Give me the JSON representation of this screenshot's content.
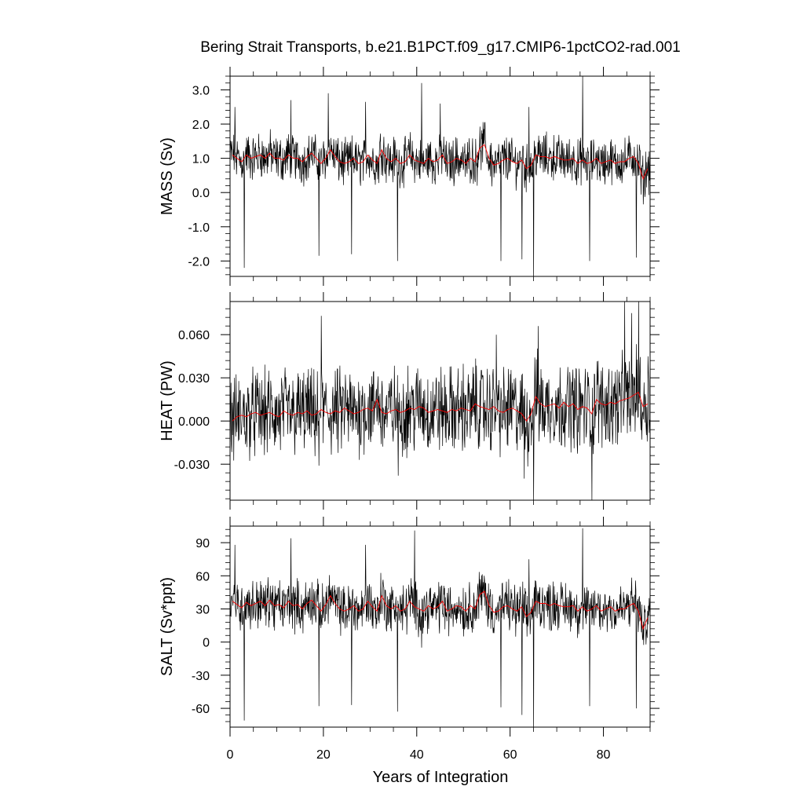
{
  "chart_data": {
    "type": "line",
    "title": "Bering Strait Transports, b.e21.B1PCT.f09_g17.CMIP6-1pctCO2-rad.001",
    "xlabel": "Years of Integration",
    "xlim": [
      0,
      90
    ],
    "xticks": [
      0,
      20,
      40,
      60,
      80
    ],
    "xtick_labels": [
      "0",
      "20",
      "40",
      "60",
      "80"
    ],
    "colors": {
      "monthly": "#000000",
      "annual": "#ff0000"
    },
    "panels": [
      {
        "ylabel": "MASS (Sv)",
        "ylim": [
          -2.45,
          3.4
        ],
        "yticks": [
          -2.0,
          -1.0,
          0.0,
          1.0,
          2.0,
          3.0
        ],
        "ytick_labels": [
          "-2.0",
          "-1.0",
          "0.0",
          "1.0",
          "2.0",
          "3.0"
        ],
        "annual_x": [
          0.5,
          1.5,
          2.5,
          3.5,
          4.5,
          5.5,
          6.5,
          7.5,
          8.5,
          9.5,
          10.5,
          11.5,
          12.5,
          13.5,
          14.5,
          15.5,
          16.5,
          17.5,
          18.5,
          19.5,
          20.5,
          21.5,
          22.5,
          23.5,
          24.5,
          25.5,
          26.5,
          27.5,
          28.5,
          29.5,
          30.5,
          31.5,
          32.5,
          33.5,
          34.5,
          35.5,
          36.5,
          37.5,
          38.5,
          39.5,
          40.5,
          41.5,
          42.5,
          43.5,
          44.5,
          45.5,
          46.5,
          47.5,
          48.5,
          49.5,
          50.5,
          51.5,
          52.5,
          53.5,
          54.5,
          55.5,
          56.5,
          57.5,
          58.5,
          59.5,
          60.5,
          61.5,
          62.5,
          63.5,
          64.5,
          65.5,
          66.5,
          67.5,
          68.5,
          69.5,
          70.5,
          71.5,
          72.5,
          73.5,
          74.5,
          75.5,
          76.5,
          77.5,
          78.5,
          79.5,
          80.5,
          81.5,
          82.5,
          83.5,
          84.5,
          85.5,
          86.5,
          87.5,
          88.5,
          89.5
        ],
        "annual_values": [
          1.1,
          1.0,
          0.9,
          1.1,
          1.0,
          1.05,
          1.1,
          1.0,
          1.15,
          1.0,
          1.0,
          0.95,
          1.1,
          1.0,
          1.0,
          0.9,
          1.05,
          1.15,
          1.0,
          0.85,
          1.0,
          1.25,
          1.05,
          0.9,
          0.85,
          0.9,
          1.0,
          0.85,
          0.9,
          1.1,
          0.95,
          0.85,
          1.25,
          1.0,
          0.9,
          1.0,
          0.85,
          0.9,
          1.1,
          0.95,
          0.9,
          0.85,
          1.0,
          0.9,
          0.95,
          1.1,
          0.85,
          0.9,
          1.0,
          0.95,
          0.85,
          1.0,
          0.9,
          1.3,
          1.4,
          1.0,
          0.8,
          0.85,
          0.95,
          1.0,
          0.9,
          0.85,
          0.95,
          0.7,
          0.8,
          1.1,
          1.05,
          1.05,
          1.0,
          1.05,
          1.0,
          0.95,
          0.95,
          1.0,
          0.85,
          0.95,
          0.85,
          0.9,
          1.0,
          0.85,
          0.9,
          0.95,
          0.85,
          0.9,
          0.9,
          1.0,
          1.05,
          0.85,
          0.4,
          0.7
        ],
        "monthly_mean": 0.95,
        "monthly_spread": 0.45,
        "monthly_spikes": [
          [
            3.0,
            -2.2
          ],
          [
            19.0,
            -1.85
          ],
          [
            21.0,
            2.9
          ],
          [
            26.0,
            -1.8
          ],
          [
            29.0,
            2.65
          ],
          [
            35.8,
            -2.0
          ],
          [
            41.0,
            3.2
          ],
          [
            58.0,
            -2.0
          ],
          [
            62.5,
            -1.95
          ],
          [
            64.0,
            2.5
          ],
          [
            65.0,
            -2.45
          ],
          [
            75.5,
            3.4
          ],
          [
            77.0,
            -2.0
          ],
          [
            87.0,
            -1.9
          ],
          [
            1.0,
            2.5
          ],
          [
            13.0,
            2.7
          ],
          [
            45.0,
            2.6
          ]
        ]
      },
      {
        "ylabel": "HEAT (PW)",
        "ylim": [
          -0.055,
          0.083
        ],
        "yticks": [
          -0.03,
          0.0,
          0.03,
          0.06
        ],
        "ytick_labels": [
          "-0.030",
          "0.000",
          "0.030",
          "0.060"
        ],
        "annual_x": [
          0.5,
          1.5,
          2.5,
          3.5,
          4.5,
          5.5,
          6.5,
          7.5,
          8.5,
          9.5,
          10.5,
          11.5,
          12.5,
          13.5,
          14.5,
          15.5,
          16.5,
          17.5,
          18.5,
          19.5,
          20.5,
          21.5,
          22.5,
          23.5,
          24.5,
          25.5,
          26.5,
          27.5,
          28.5,
          29.5,
          30.5,
          31.5,
          32.5,
          33.5,
          34.5,
          35.5,
          36.5,
          37.5,
          38.5,
          39.5,
          40.5,
          41.5,
          42.5,
          43.5,
          44.5,
          45.5,
          46.5,
          47.5,
          48.5,
          49.5,
          50.5,
          51.5,
          52.5,
          53.5,
          54.5,
          55.5,
          56.5,
          57.5,
          58.5,
          59.5,
          60.5,
          61.5,
          62.5,
          63.5,
          64.5,
          65.5,
          66.5,
          67.5,
          68.5,
          69.5,
          70.5,
          71.5,
          72.5,
          73.5,
          74.5,
          75.5,
          76.5,
          77.5,
          78.5,
          79.5,
          80.5,
          81.5,
          82.5,
          83.5,
          84.5,
          85.5,
          86.5,
          87.5,
          88.5,
          89.5
        ],
        "annual_values": [
          0.0,
          0.003,
          0.004,
          0.003,
          0.005,
          0.006,
          0.004,
          0.005,
          0.006,
          0.004,
          0.003,
          0.007,
          0.005,
          0.004,
          0.006,
          0.005,
          0.007,
          0.004,
          0.005,
          0.008,
          0.006,
          0.005,
          0.007,
          0.006,
          0.009,
          0.007,
          0.005,
          0.006,
          0.008,
          0.009,
          0.007,
          0.015,
          0.006,
          0.005,
          0.007,
          0.008,
          0.006,
          0.007,
          0.009,
          0.008,
          0.01,
          0.009,
          0.006,
          0.007,
          0.008,
          0.007,
          0.006,
          0.008,
          0.007,
          0.009,
          0.008,
          0.007,
          0.012,
          0.01,
          0.009,
          0.008,
          0.01,
          0.007,
          0.006,
          0.008,
          0.009,
          0.007,
          0.005,
          0.0,
          0.005,
          0.017,
          0.012,
          0.01,
          0.011,
          0.012,
          0.009,
          0.013,
          0.01,
          0.012,
          0.008,
          0.01,
          0.009,
          0.005,
          0.015,
          0.012,
          0.011,
          0.013,
          0.012,
          0.014,
          0.015,
          0.016,
          0.018,
          0.02,
          0.01,
          0.012
        ],
        "monthly_mean": 0.008,
        "monthly_spread": 0.02,
        "monthly_spikes": [
          [
            19.5,
            0.073
          ],
          [
            19.0,
            -0.031
          ],
          [
            36.0,
            -0.038
          ],
          [
            63.0,
            -0.04
          ],
          [
            65.0,
            -0.055
          ],
          [
            66.0,
            0.066
          ],
          [
            77.5,
            -0.055
          ],
          [
            84.5,
            0.083
          ],
          [
            86.0,
            0.075
          ],
          [
            87.5,
            0.083
          ],
          [
            89.5,
            0.045
          ],
          [
            57.0,
            0.06
          ]
        ]
      },
      {
        "ylabel": "SALT (Sv*ppt)",
        "ylim": [
          -77,
          105
        ],
        "yticks": [
          -60,
          -30,
          0,
          30,
          60,
          90
        ],
        "ytick_labels": [
          "-60",
          "-30",
          "0",
          "30",
          "60",
          "90"
        ],
        "annual_x": [
          0.5,
          1.5,
          2.5,
          3.5,
          4.5,
          5.5,
          6.5,
          7.5,
          8.5,
          9.5,
          10.5,
          11.5,
          12.5,
          13.5,
          14.5,
          15.5,
          16.5,
          17.5,
          18.5,
          19.5,
          20.5,
          21.5,
          22.5,
          23.5,
          24.5,
          25.5,
          26.5,
          27.5,
          28.5,
          29.5,
          30.5,
          31.5,
          32.5,
          33.5,
          34.5,
          35.5,
          36.5,
          37.5,
          38.5,
          39.5,
          40.5,
          41.5,
          42.5,
          43.5,
          44.5,
          45.5,
          46.5,
          47.5,
          48.5,
          49.5,
          50.5,
          51.5,
          52.5,
          53.5,
          54.5,
          55.5,
          56.5,
          57.5,
          58.5,
          59.5,
          60.5,
          61.5,
          62.5,
          63.5,
          64.5,
          65.5,
          66.5,
          67.5,
          68.5,
          69.5,
          70.5,
          71.5,
          72.5,
          73.5,
          74.5,
          75.5,
          76.5,
          77.5,
          78.5,
          79.5,
          80.5,
          81.5,
          82.5,
          83.5,
          84.5,
          85.5,
          86.5,
          87.5,
          88.5,
          89.5
        ],
        "annual_values": [
          37,
          34,
          31,
          36,
          33,
          35,
          37,
          33,
          38,
          33,
          34,
          31,
          37,
          33,
          34,
          30,
          35,
          38,
          33,
          28,
          34,
          42,
          35,
          30,
          28,
          30,
          33,
          28,
          30,
          37,
          32,
          28,
          42,
          33,
          30,
          33,
          28,
          30,
          37,
          32,
          30,
          28,
          33,
          30,
          32,
          37,
          28,
          30,
          33,
          32,
          28,
          33,
          30,
          43,
          46,
          33,
          27,
          28,
          32,
          33,
          30,
          28,
          32,
          23,
          27,
          37,
          35,
          35,
          33,
          35,
          33,
          32,
          32,
          33,
          28,
          32,
          28,
          30,
          33,
          28,
          30,
          32,
          28,
          30,
          30,
          33,
          35,
          28,
          12,
          22
        ],
        "monthly_mean": 31,
        "monthly_spread": 15,
        "monthly_spikes": [
          [
            3.0,
            -71
          ],
          [
            1.0,
            88
          ],
          [
            13.0,
            94
          ],
          [
            19.0,
            -58
          ],
          [
            26.0,
            -57
          ],
          [
            29.0,
            88
          ],
          [
            35.8,
            -63
          ],
          [
            39.5,
            101
          ],
          [
            41.0,
            -5
          ],
          [
            58.0,
            -59
          ],
          [
            62.5,
            -66
          ],
          [
            64.0,
            75
          ],
          [
            65.0,
            -77
          ],
          [
            75.5,
            103
          ],
          [
            77.0,
            -58
          ],
          [
            87.0,
            -60
          ]
        ]
      }
    ]
  }
}
